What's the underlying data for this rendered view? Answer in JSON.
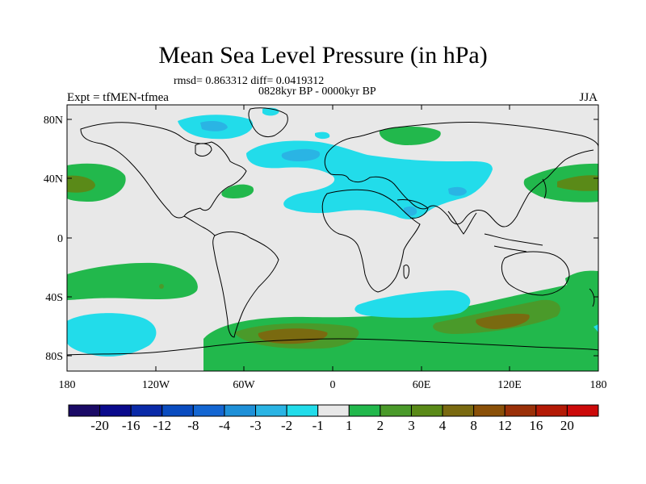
{
  "title": "Mean Sea Level Pressure (in hPa)",
  "stats": "rmsd= 0.863312 diff= 0.0419312",
  "period": "0828kyr BP - 0000kyr BP",
  "experiment": "Expt = tfMEN-tfmea",
  "season": "JJA",
  "lat_ticks": [
    "80N",
    "40N",
    "0",
    "40S",
    "80S"
  ],
  "lon_ticks": [
    "180",
    "120W",
    "60W",
    "0",
    "60E",
    "120E",
    "180"
  ],
  "colorbar": {
    "colors": [
      "#1a0a66",
      "#0a0a8c",
      "#0a2aa8",
      "#0a4cc0",
      "#1466d2",
      "#1e90d8",
      "#2ab4e4",
      "#22dcea",
      "#e8e8e8",
      "#22b84c",
      "#4a9a2a",
      "#5a8a18",
      "#7a6a10",
      "#8a5008",
      "#9a3008",
      "#b41a06",
      "#cc0a0a"
    ],
    "labels": [
      "-20",
      "-16",
      "-12",
      "-8",
      "-4",
      "-3",
      "-2",
      "-1",
      "1",
      "2",
      "3",
      "4",
      "8",
      "12",
      "16",
      "20"
    ]
  },
  "colors": {
    "background": "#e8e8e8",
    "cyan": "#22dcea",
    "light_blue": "#2ab4e4",
    "blue": "#1e90d8",
    "green": "#22b84c",
    "mid_green": "#4a9a2a",
    "olive": "#5a8a18",
    "brown": "#7a6a10"
  }
}
